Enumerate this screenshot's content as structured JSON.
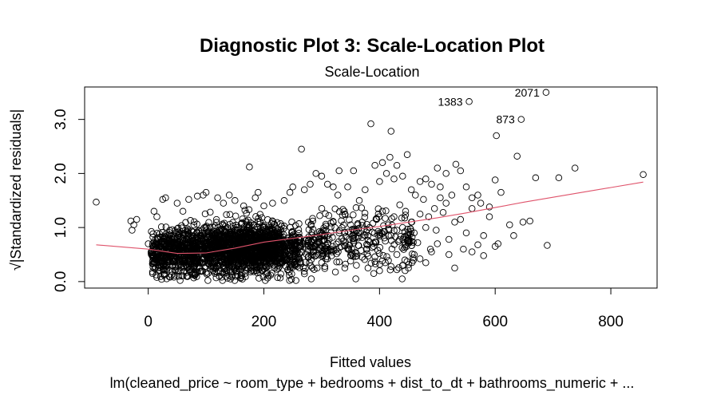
{
  "chart_data": {
    "type": "scatter",
    "title": "Diagnostic Plot 3: Scale-Location Plot",
    "subtitle": "Scale-Location",
    "xlabel": "Fitted values",
    "ylabel": "√|Standardized residuals|",
    "caption": "lm(cleaned_price ~ room_type + bedrooms + dist_to_dt + bathrooms_numeric +  ...",
    "xlim": [
      -110,
      880
    ],
    "ylim": [
      -0.12,
      3.6
    ],
    "x_ticks": [
      0,
      200,
      400,
      600,
      800
    ],
    "y_ticks": [
      0.0,
      1.0,
      2.0,
      3.0
    ],
    "y_tick_labels": [
      "0.0",
      "1.0",
      "2.0",
      "3.0"
    ],
    "marker": "open-circle",
    "point_color": "#000000",
    "smooth_color": "#df536b",
    "labeled_points": [
      {
        "x": 555,
        "y": 3.33,
        "label": "1383"
      },
      {
        "x": 688,
        "y": 3.5,
        "label": "2071"
      },
      {
        "x": 645,
        "y": 3.0,
        "label": "873"
      }
    ],
    "points": [
      [
        -90,
        1.47
      ],
      [
        -30,
        1.12
      ],
      [
        -25,
        1.05
      ],
      [
        -28,
        0.95
      ],
      [
        -20,
        1.15
      ],
      [
        15,
        1.2
      ],
      [
        25,
        1.52
      ],
      [
        30,
        1.55
      ],
      [
        10,
        1.3
      ],
      [
        0,
        0.7
      ],
      [
        5,
        0.55
      ],
      [
        20,
        0.45
      ],
      [
        50,
        1.45
      ],
      [
        60,
        1.3
      ],
      [
        70,
        1.52
      ],
      [
        85,
        1.58
      ],
      [
        95,
        1.6
      ],
      [
        100,
        1.65
      ],
      [
        120,
        1.55
      ],
      [
        130,
        1.45
      ],
      [
        140,
        1.6
      ],
      [
        150,
        1.5
      ],
      [
        165,
        1.4
      ],
      [
        175,
        2.12
      ],
      [
        185,
        1.55
      ],
      [
        190,
        1.65
      ],
      [
        200,
        1.4
      ],
      [
        215,
        1.45
      ],
      [
        235,
        1.5
      ],
      [
        245,
        1.65
      ],
      [
        250,
        1.75
      ],
      [
        265,
        2.45
      ],
      [
        270,
        1.7
      ],
      [
        280,
        1.8
      ],
      [
        290,
        2.0
      ],
      [
        300,
        1.95
      ],
      [
        310,
        1.8
      ],
      [
        320,
        1.75
      ],
      [
        330,
        2.05
      ],
      [
        345,
        1.75
      ],
      [
        355,
        2.05
      ],
      [
        365,
        1.5
      ],
      [
        375,
        1.7
      ],
      [
        385,
        2.92
      ],
      [
        392,
        2.15
      ],
      [
        400,
        1.85
      ],
      [
        405,
        2.2
      ],
      [
        412,
        2.0
      ],
      [
        418,
        2.3
      ],
      [
        420,
        2.78
      ],
      [
        425,
        1.9
      ],
      [
        430,
        2.15
      ],
      [
        440,
        1.95
      ],
      [
        448,
        2.35
      ],
      [
        455,
        1.7
      ],
      [
        462,
        1.6
      ],
      [
        470,
        1.85
      ],
      [
        480,
        1.9
      ],
      [
        490,
        1.8
      ],
      [
        500,
        2.1
      ],
      [
        505,
        1.75
      ],
      [
        515,
        2.0
      ],
      [
        525,
        1.6
      ],
      [
        532,
        2.17
      ],
      [
        540,
        2.05
      ],
      [
        550,
        1.75
      ],
      [
        560,
        1.55
      ],
      [
        575,
        1.45
      ],
      [
        590,
        1.38
      ],
      [
        600,
        1.88
      ],
      [
        602,
        2.7
      ],
      [
        610,
        1.65
      ],
      [
        625,
        1.05
      ],
      [
        632,
        0.85
      ],
      [
        638,
        2.32
      ],
      [
        648,
        1.1
      ],
      [
        660,
        1.12
      ],
      [
        670,
        1.92
      ],
      [
        690,
        0.67
      ],
      [
        710,
        1.92
      ],
      [
        738,
        2.1
      ],
      [
        856,
        1.98
      ],
      [
        560,
        0.55
      ],
      [
        570,
        0.68
      ],
      [
        580,
        0.48
      ],
      [
        600,
        0.65
      ],
      [
        605,
        0.7
      ],
      [
        580,
        0.85
      ],
      [
        550,
        0.9
      ],
      [
        520,
        0.78
      ],
      [
        500,
        0.7
      ],
      [
        490,
        0.55
      ],
      [
        480,
        0.35
      ],
      [
        470,
        0.42
      ],
      [
        460,
        0.5
      ],
      [
        450,
        0.25
      ],
      [
        440,
        0.3
      ],
      [
        430,
        0.22
      ],
      [
        420,
        0.28
      ],
      [
        410,
        0.35
      ],
      [
        400,
        0.2
      ],
      [
        390,
        0.15
      ],
      [
        380,
        0.25
      ],
      [
        370,
        0.45
      ],
      [
        360,
        0.3
      ],
      [
        350,
        0.38
      ],
      [
        340,
        0.25
      ],
      [
        530,
        1.1
      ],
      [
        540,
        1.15
      ],
      [
        510,
        1.28
      ],
      [
        495,
        1.35
      ],
      [
        485,
        1.2
      ],
      [
        470,
        1.25
      ],
      [
        455,
        1.1
      ],
      [
        445,
        1.3
      ],
      [
        435,
        1.42
      ],
      [
        425,
        1.2
      ],
      [
        415,
        1.05
      ],
      [
        405,
        1.3
      ],
      [
        395,
        1.15
      ],
      [
        530,
        0.25
      ],
      [
        545,
        0.6
      ],
      [
        480,
        1.0
      ],
      [
        460,
        0.9
      ],
      [
        450,
        0.8
      ],
      [
        440,
        1.0
      ],
      [
        430,
        0.95
      ],
      [
        420,
        0.85
      ],
      [
        410,
        0.75
      ],
      [
        400,
        0.9
      ],
      [
        390,
        0.65
      ],
      [
        380,
        0.85
      ],
      [
        370,
        1.1
      ],
      [
        360,
        0.95
      ],
      [
        350,
        1.05
      ],
      [
        340,
        1.25
      ],
      [
        330,
        0.9
      ],
      [
        320,
        1.1
      ],
      [
        310,
        0.7
      ],
      [
        300,
        0.85
      ],
      [
        560,
        1.35
      ],
      [
        570,
        1.6
      ],
      [
        590,
        1.2
      ],
      [
        520,
        0.5
      ],
      [
        515,
        1.45
      ],
      [
        505,
        1.55
      ],
      [
        498,
        0.95
      ],
      [
        488,
        0.6
      ],
      [
        476,
        1.52
      ],
      [
        466,
        0.72
      ]
    ],
    "smooth_line": [
      [
        -90,
        0.68
      ],
      [
        0,
        0.6
      ],
      [
        50,
        0.52
      ],
      [
        100,
        0.53
      ],
      [
        150,
        0.62
      ],
      [
        200,
        0.73
      ],
      [
        250,
        0.8
      ],
      [
        300,
        0.87
      ],
      [
        350,
        0.95
      ],
      [
        400,
        1.02
      ],
      [
        450,
        1.1
      ],
      [
        500,
        1.18
      ],
      [
        550,
        1.27
      ],
      [
        600,
        1.37
      ],
      [
        650,
        1.47
      ],
      [
        700,
        1.56
      ],
      [
        750,
        1.65
      ],
      [
        800,
        1.74
      ],
      [
        856,
        1.84
      ]
    ]
  }
}
